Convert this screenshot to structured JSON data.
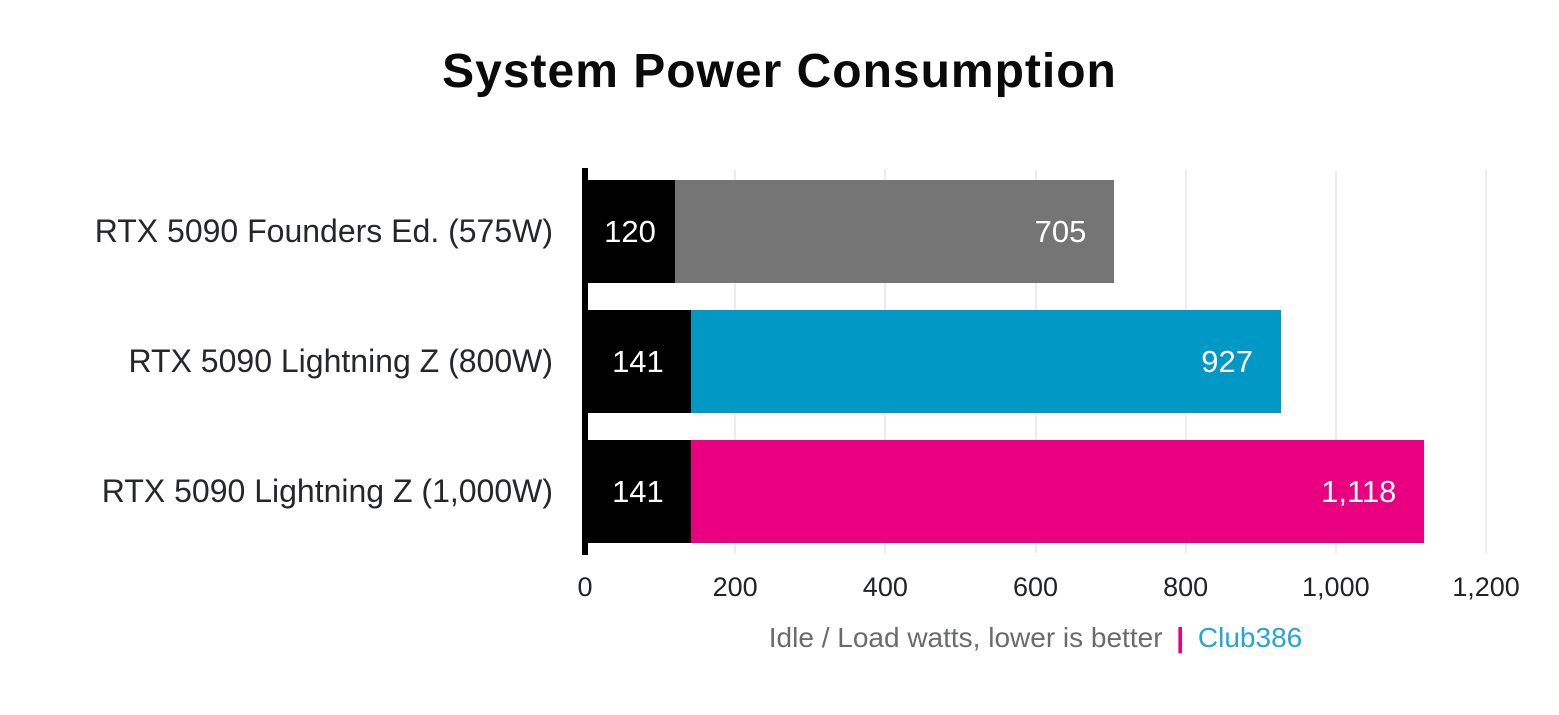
{
  "title": "System Power Consumption",
  "footer": {
    "caption": "Idle / Load watts, lower is better",
    "separator": "|",
    "brand": "Club386"
  },
  "axis": {
    "ticks": [
      "0",
      "200",
      "400",
      "600",
      "800",
      "1,000",
      "1,200"
    ]
  },
  "colors": {
    "idle_segment": "#000000",
    "load_gray": "#757575",
    "load_blue": "#0099C5",
    "load_pink": "#E80081",
    "axis_line": "#000000",
    "gridline": "#ececec",
    "value_label_text": "#ffffff",
    "caption_text": "#6a6b6e",
    "caption_separator": "#E80081",
    "brand_text": "#25A5D5"
  },
  "chart_data": {
    "type": "bar",
    "orientation": "horizontal",
    "title": "System Power Consumption",
    "xlabel": "Idle / Load watts, lower is better | Club386",
    "xlim": [
      0,
      1200
    ],
    "grid": true,
    "legend": "none",
    "categories": [
      "RTX 5090 Founders Ed. (575W)",
      "RTX 5090 Lightning Z (800W)",
      "RTX 5090 Lightning Z (1,000W)"
    ],
    "series": [
      {
        "name": "Idle",
        "values": [
          120,
          141,
          141
        ],
        "labels": [
          "120",
          "141",
          "141"
        ],
        "color": "#000000"
      },
      {
        "name": "Load",
        "values": [
          705,
          927,
          1118
        ],
        "labels": [
          "705",
          "927",
          "1,118"
        ],
        "colors": [
          "#757575",
          "#0099C5",
          "#E80081"
        ]
      }
    ],
    "note": "idle segment drawn from 0 to idle value in black; load bar spans from idle value to load value"
  }
}
